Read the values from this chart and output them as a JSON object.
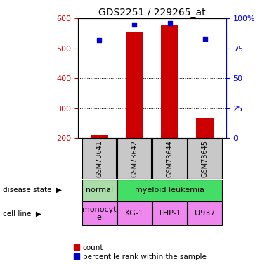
{
  "title": "GDS2251 / 229265_at",
  "samples": [
    "GSM73641",
    "GSM73642",
    "GSM73644",
    "GSM73645"
  ],
  "counts": [
    210,
    553,
    580,
    268
  ],
  "percentiles": [
    82,
    95,
    96,
    83
  ],
  "ylim_left": [
    200,
    600
  ],
  "ylim_right": [
    0,
    100
  ],
  "yticks_left": [
    200,
    300,
    400,
    500,
    600
  ],
  "yticks_right": [
    0,
    25,
    50,
    75,
    100
  ],
  "ytick_labels_right": [
    "0",
    "25",
    "50",
    "75",
    "100%"
  ],
  "bar_color": "#cc0000",
  "dot_color": "#0000cc",
  "bar_width": 0.5,
  "disease_label": "disease state",
  "cell_line_label": "cell line",
  "legend_count": "count",
  "legend_pct": "percentile rank within the sample",
  "bg_color": "#ffffff",
  "sample_bg_color": "#c8c8c8",
  "normal_color": "#aaddaa",
  "myeloid_color": "#44dd66",
  "cell_line_color": "#dd88ee",
  "axis_color_left": "#cc0000",
  "axis_color_right": "#0000cc",
  "disease_groups": [
    {
      "label": "normal",
      "cols": [
        0
      ],
      "color": "#aaddaa"
    },
    {
      "label": "myeloid leukemia",
      "cols": [
        1,
        2,
        3
      ],
      "color": "#44dd66"
    }
  ],
  "cell_line_groups": [
    {
      "label": "monocyt\ne",
      "cols": [
        0
      ],
      "color": "#ee88ee"
    },
    {
      "label": "KG-1",
      "cols": [
        1
      ],
      "color": "#ee88ee"
    },
    {
      "label": "THP-1",
      "cols": [
        2
      ],
      "color": "#ee88ee"
    },
    {
      "label": "U937",
      "cols": [
        3
      ],
      "color": "#ee88ee"
    }
  ]
}
